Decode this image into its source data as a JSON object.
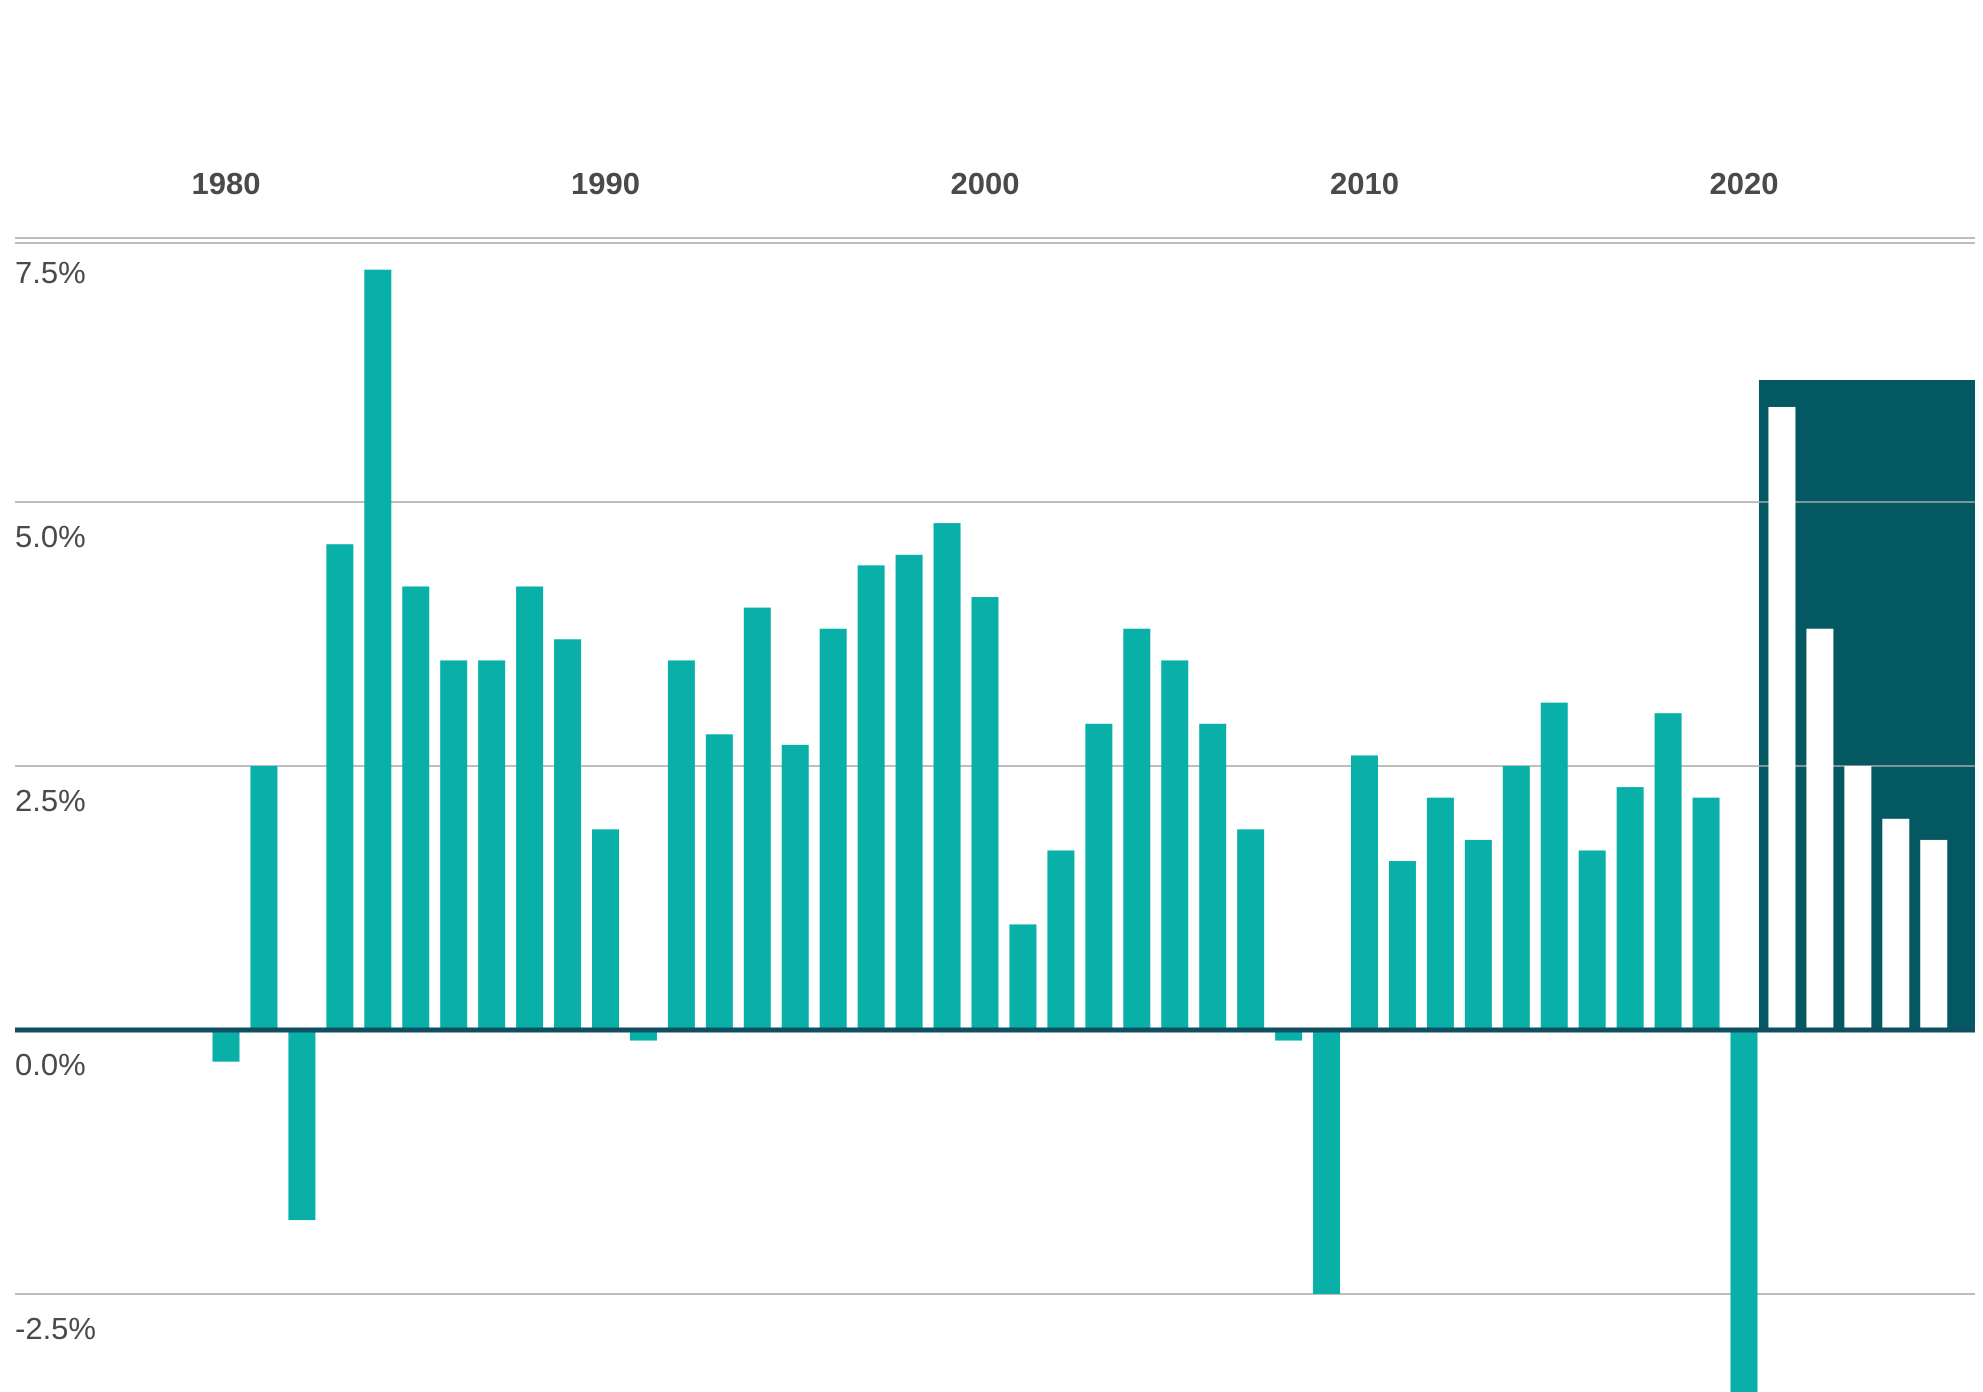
{
  "chart_data": {
    "type": "bar",
    "title": "",
    "xlabel": "",
    "ylabel": "",
    "x_tick_labels": [
      "1980",
      "1990",
      "2000",
      "2010",
      "2020"
    ],
    "x_tick_years": [
      1980,
      1990,
      2000,
      2010,
      2020
    ],
    "y_tick_labels": [
      "7.5%",
      "5.0%",
      "2.5%",
      "0.0%",
      "-2.5%"
    ],
    "y_tick_values": [
      7.5,
      5.0,
      2.5,
      0.0,
      -2.5
    ],
    "ylim": [
      -3.5,
      7.8
    ],
    "grid": true,
    "legend": "none",
    "highlight_start_year": 2020.5,
    "colors": {
      "bar": "#08b0a8",
      "highlight_bar": "#ffffff",
      "highlight_panel": "#035862",
      "zero_line": "#0f4f5f",
      "grid": "#a8a8a8",
      "tick_text": "#4a4a4a"
    },
    "series": [
      {
        "x": [
          1980,
          1981,
          1982,
          1983,
          1984,
          1985,
          1986,
          1987,
          1988,
          1989,
          1990,
          1991,
          1992,
          1993,
          1994,
          1995,
          1996,
          1997,
          1998,
          1999,
          2000,
          2001,
          2002,
          2003,
          2004,
          2005,
          2006,
          2007,
          2008,
          2009,
          2010,
          2011,
          2012,
          2013,
          2014,
          2015,
          2016,
          2017,
          2018,
          2019,
          2020,
          2021,
          2022,
          2023,
          2024,
          2025
        ],
        "values": [
          -0.3,
          2.5,
          -1.8,
          4.6,
          7.2,
          4.2,
          3.5,
          3.5,
          4.2,
          3.7,
          1.9,
          -0.1,
          3.5,
          2.8,
          4.0,
          2.7,
          3.8,
          4.4,
          4.5,
          4.8,
          4.1,
          1.0,
          1.7,
          2.9,
          3.8,
          3.5,
          2.9,
          1.9,
          -0.1,
          -2.5,
          2.6,
          1.6,
          2.2,
          1.8,
          2.5,
          3.1,
          1.7,
          2.3,
          3.0,
          2.2,
          -3.5,
          5.9,
          3.8,
          2.5,
          2.0,
          1.8
        ]
      }
    ]
  }
}
